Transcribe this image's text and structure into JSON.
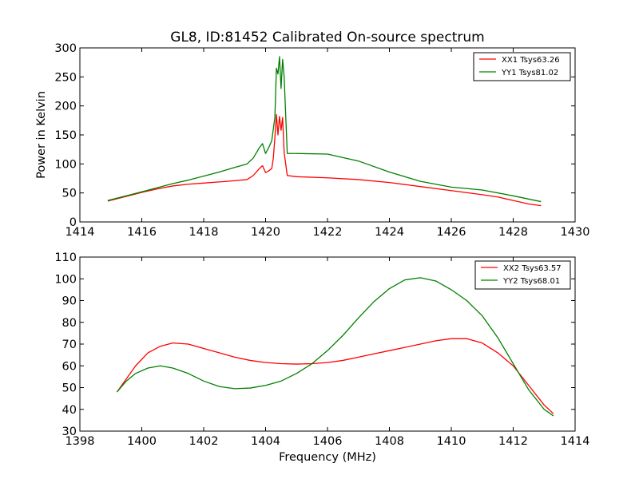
{
  "chart_data": [
    {
      "type": "line",
      "title": "GL8, ID:81452 Calibrated On-source spectrum",
      "xlabel": "",
      "ylabel": "Power in Kelvin",
      "xlim": [
        1414,
        1430
      ],
      "ylim": [
        0,
        300
      ],
      "xticks": [
        "1414",
        "1416",
        "1418",
        "1420",
        "1422",
        "1424",
        "1426",
        "1428",
        "1430"
      ],
      "yticks": [
        "0",
        "50",
        "100",
        "150",
        "200",
        "250",
        "300"
      ],
      "legend_position": "top-right",
      "series": [
        {
          "name": "XX1 Tsys63.26",
          "color": "#ff0000",
          "x": [
            1414.9,
            1415.5,
            1416,
            1416.5,
            1417,
            1417.5,
            1418,
            1418.5,
            1419,
            1419.4,
            1419.6,
            1419.8,
            1419.9,
            1420.0,
            1420.1,
            1420.2,
            1420.25,
            1420.3,
            1420.35,
            1420.4,
            1420.45,
            1420.5,
            1420.55,
            1420.6,
            1420.7,
            1421,
            1422,
            1423,
            1424,
            1425,
            1426,
            1427,
            1427.5,
            1428,
            1428.5,
            1428.9
          ],
          "y": [
            36,
            44,
            51,
            57,
            62,
            65,
            67,
            69,
            71,
            73,
            80,
            92,
            97,
            85,
            88,
            92,
            110,
            145,
            185,
            150,
            182,
            158,
            180,
            120,
            80,
            78,
            76,
            73,
            68,
            61,
            54,
            47,
            43,
            37,
            31,
            28
          ]
        },
        {
          "name": "YY1 Tsys81.02",
          "color": "#008000",
          "x": [
            1414.9,
            1415.5,
            1416,
            1416.5,
            1417,
            1417.5,
            1418,
            1418.5,
            1419,
            1419.4,
            1419.6,
            1419.8,
            1419.9,
            1420.0,
            1420.1,
            1420.2,
            1420.3,
            1420.35,
            1420.4,
            1420.45,
            1420.5,
            1420.55,
            1420.6,
            1420.7,
            1421,
            1422,
            1423,
            1424,
            1425,
            1426,
            1427,
            1428,
            1428.9
          ],
          "y": [
            37,
            45,
            52,
            59,
            66,
            72,
            79,
            86,
            94,
            100,
            110,
            128,
            135,
            118,
            128,
            140,
            180,
            265,
            255,
            285,
            230,
            280,
            250,
            118,
            118,
            117,
            105,
            86,
            70,
            60,
            55,
            45,
            35
          ]
        }
      ]
    },
    {
      "type": "line",
      "title": "",
      "xlabel": "Frequency (MHz)",
      "ylabel": "",
      "xlim": [
        1398,
        1414
      ],
      "ylim": [
        30,
        110
      ],
      "xticks": [
        "1398",
        "1400",
        "1402",
        "1404",
        "1406",
        "1408",
        "1410",
        "1412",
        "1414"
      ],
      "yticks": [
        "30",
        "40",
        "50",
        "60",
        "70",
        "80",
        "90",
        "100",
        "110"
      ],
      "legend_position": "top-right",
      "series": [
        {
          "name": "XX2 Tsys63.57",
          "color": "#ff0000",
          "x": [
            1399.2,
            1399.5,
            1399.8,
            1400.2,
            1400.6,
            1401.0,
            1401.5,
            1402.0,
            1402.5,
            1403.0,
            1403.5,
            1404.0,
            1404.5,
            1405.0,
            1405.5,
            1406.0,
            1406.5,
            1407.0,
            1407.5,
            1408.0,
            1408.5,
            1409.0,
            1409.5,
            1410.0,
            1410.5,
            1411.0,
            1411.5,
            1412.0,
            1412.5,
            1413.0,
            1413.3
          ],
          "y": [
            48,
            54,
            60,
            66,
            69,
            70.5,
            70,
            68,
            66,
            64,
            62.5,
            61.5,
            61,
            60.8,
            61,
            61.5,
            62.5,
            64,
            65.5,
            67,
            68.5,
            70,
            71.5,
            72.5,
            72.5,
            70.5,
            66,
            60,
            51,
            42,
            38
          ]
        },
        {
          "name": "YY2 Tsys68.01",
          "color": "#008000",
          "x": [
            1399.2,
            1399.5,
            1399.8,
            1400.2,
            1400.6,
            1401.0,
            1401.5,
            1402.0,
            1402.5,
            1403.0,
            1403.5,
            1404.0,
            1404.5,
            1405.0,
            1405.5,
            1406.0,
            1406.5,
            1407.0,
            1407.5,
            1408.0,
            1408.5,
            1409.0,
            1409.5,
            1410.0,
            1410.5,
            1411.0,
            1411.5,
            1412.0,
            1412.5,
            1413.0,
            1413.3
          ],
          "y": [
            48,
            53,
            56.5,
            59,
            60,
            59,
            56.5,
            53,
            50.5,
            49.5,
            49.8,
            51,
            53,
            56.5,
            61,
            67,
            74,
            82,
            89.5,
            95.5,
            99.5,
            100.5,
            99,
            95,
            90,
            83,
            73,
            61,
            49,
            40,
            37
          ]
        }
      ]
    }
  ]
}
